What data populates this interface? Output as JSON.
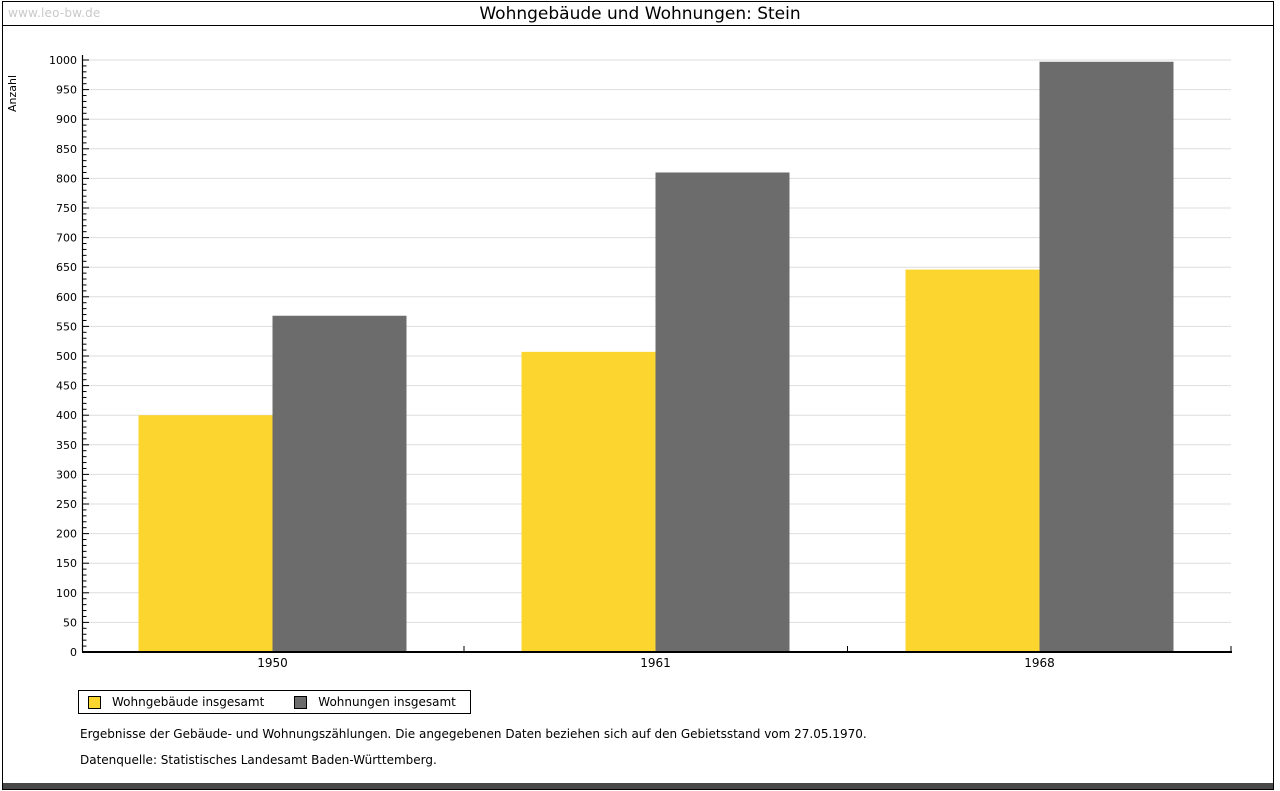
{
  "watermark": "www.leo-bw.de",
  "chart_data": {
    "type": "bar",
    "title": "Wohngebäude und Wohnungen: Stein",
    "ylabel": "Anzahl",
    "xlabel": "",
    "categories": [
      "1950",
      "1961",
      "1968"
    ],
    "series": [
      {
        "name": "Wohngebäude insgesamt",
        "color": "#FCD52F",
        "values": [
          400,
          507,
          646
        ]
      },
      {
        "name": "Wohnungen insgesamt",
        "color": "#6C6C6C",
        "values": [
          568,
          810,
          997
        ]
      }
    ],
    "ylim": [
      0,
      1000
    ],
    "y_major_step": 50,
    "y_minor_step": 10,
    "grid": "horizontal-major",
    "gridline_color": "#DEDEDE",
    "legend_position": "bottom-left"
  },
  "footnotes": {
    "line1": "Ergebnisse der Gebäude- und Wohnungszählungen. Die angegebenen Daten beziehen sich auf den Gebietsstand vom 27.05.1970.",
    "line2": "Datenquelle: Statistisches Landesamt Baden-Württemberg."
  }
}
